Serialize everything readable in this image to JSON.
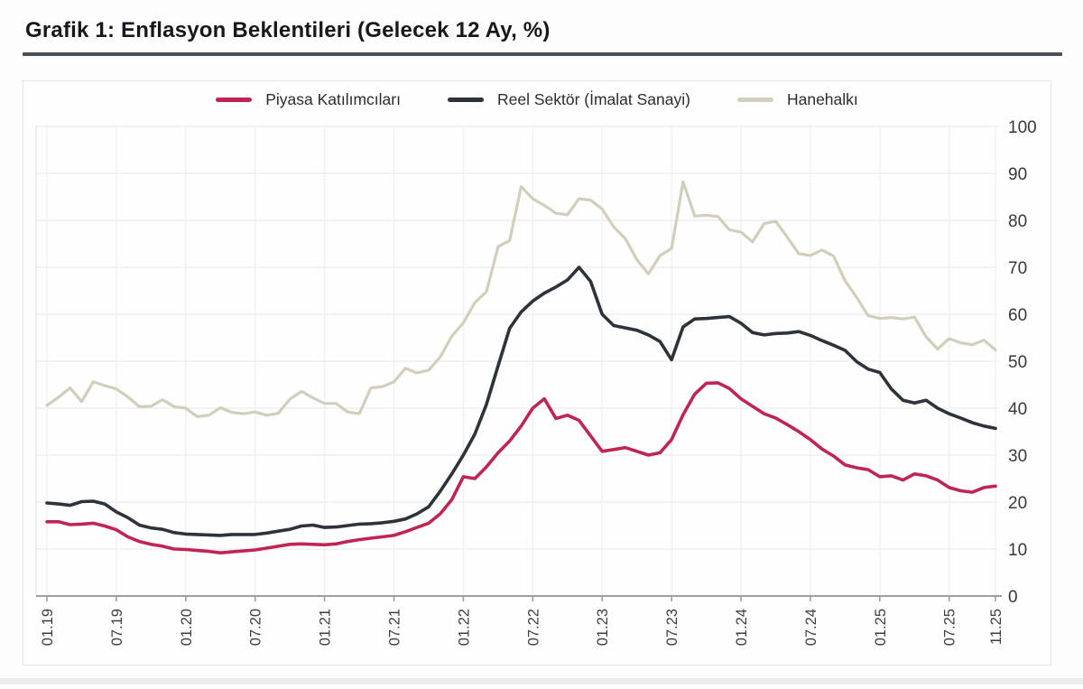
{
  "title": "Grafik 1: Enflasyon Beklentileri (Gelecek 12 Ay, %)",
  "chart_data": {
    "type": "line",
    "title": "Grafik 1: Enflasyon Beklentileri (Gelecek 12 Ay, %)",
    "x_unit": "month",
    "x_range_note": "monthly data from 01.2019 to 11.2025",
    "x_tick_labels": [
      "01.19",
      "07.19",
      "01.20",
      "07.20",
      "01.21",
      "07.21",
      "01.22",
      "07.22",
      "01.23",
      "07.23",
      "01.24",
      "07.24",
      "01.25",
      "07.25",
      "11.25"
    ],
    "x_tick_indices": [
      0,
      6,
      12,
      18,
      24,
      30,
      36,
      42,
      48,
      54,
      60,
      66,
      72,
      78,
      82
    ],
    "y_ticks": [
      0,
      10,
      20,
      30,
      40,
      50,
      60,
      70,
      80,
      90,
      100
    ],
    "y_range": [
      0,
      100
    ],
    "grid": true,
    "legend_position": "top-center",
    "series": [
      {
        "name": "Piyasa Katılımcıları",
        "color": "#c02552",
        "values": [
          15.8,
          15.8,
          15.2,
          15.3,
          15.5,
          14.9,
          14.1,
          12.6,
          11.6,
          11.0,
          10.6,
          10.0,
          9.9,
          9.7,
          9.5,
          9.2,
          9.4,
          9.6,
          9.8,
          10.2,
          10.6,
          11.0,
          11.1,
          11.0,
          10.9,
          11.1,
          11.6,
          12.0,
          12.3,
          12.6,
          12.9,
          13.7,
          14.6,
          15.5,
          17.5,
          20.5,
          25.4,
          25.0,
          27.5,
          30.5,
          33.0,
          36.2,
          40.0,
          42.0,
          37.8,
          38.5,
          37.4,
          34.1,
          30.8,
          31.2,
          31.6,
          30.8,
          30.0,
          30.5,
          33.3,
          38.6,
          43.0,
          45.3,
          45.4,
          44.2,
          42.0,
          40.4,
          38.8,
          37.9,
          36.5,
          35.0,
          33.3,
          31.3,
          29.8,
          27.9,
          27.3,
          26.9,
          25.4,
          25.6,
          24.7,
          26.0,
          25.6,
          24.7,
          23.1,
          22.4,
          22.1,
          23.1,
          23.4
        ]
      },
      {
        "name": "Reel Sektör (İmalat Sanayi)",
        "color": "#2d333b",
        "values": [
          19.8,
          19.6,
          19.3,
          20.1,
          20.2,
          19.6,
          17.9,
          16.7,
          15.1,
          14.5,
          14.2,
          13.5,
          13.2,
          13.1,
          13.0,
          12.9,
          13.1,
          13.1,
          13.1,
          13.4,
          13.8,
          14.2,
          14.9,
          15.1,
          14.6,
          14.7,
          15.0,
          15.3,
          15.4,
          15.6,
          15.9,
          16.4,
          17.5,
          19.0,
          22.3,
          26.0,
          30.0,
          34.5,
          40.8,
          49.0,
          57.0,
          60.5,
          62.8,
          64.5,
          65.8,
          67.3,
          70.0,
          67.0,
          60.0,
          57.6,
          57.1,
          56.6,
          55.6,
          54.2,
          50.3,
          57.3,
          59.0,
          59.1,
          59.3,
          59.5,
          58.1,
          56.1,
          55.6,
          55.9,
          56.0,
          56.3,
          55.5,
          54.4,
          53.4,
          52.3,
          49.9,
          48.3,
          47.6,
          44.1,
          41.7,
          41.1,
          41.7,
          40.0,
          38.8,
          37.9,
          36.9,
          36.2,
          35.7
        ]
      },
      {
        "name": "Hanehalkı",
        "color": "#d3cdbb",
        "values": [
          40.6,
          42.3,
          44.3,
          41.4,
          45.6,
          44.8,
          44.1,
          42.4,
          40.3,
          40.4,
          41.8,
          40.3,
          40.0,
          38.2,
          38.5,
          40.1,
          39.1,
          38.8,
          39.2,
          38.5,
          38.9,
          41.9,
          43.6,
          42.2,
          41.0,
          41.0,
          39.2,
          38.8,
          44.3,
          44.6,
          45.6,
          48.5,
          47.5,
          48.1,
          50.9,
          55.3,
          58.2,
          62.5,
          64.8,
          74.4,
          75.7,
          87.2,
          84.6,
          83.2,
          81.5,
          81.2,
          84.6,
          84.3,
          82.4,
          78.6,
          76.1,
          71.6,
          68.6,
          72.5,
          74.0,
          88.2,
          80.9,
          81.1,
          80.8,
          78.0,
          77.5,
          75.4,
          79.3,
          79.8,
          76.4,
          72.9,
          72.5,
          73.7,
          72.4,
          67.1,
          63.6,
          59.7,
          59.1,
          59.3,
          59.0,
          59.4,
          55.2,
          52.6,
          54.8,
          53.9,
          53.5,
          54.5,
          52.4
        ]
      }
    ]
  },
  "colors": {
    "title_text": "#15181c",
    "title_rule": "#4b5058",
    "panel_border": "#e4e4e8",
    "axis_line": "#9b9ea3",
    "gridline": "#ececec",
    "tick_label": "#3e3e41"
  }
}
